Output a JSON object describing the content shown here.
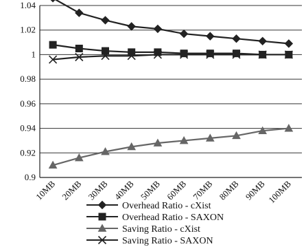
{
  "chart_data": {
    "type": "line",
    "title": "",
    "xlabel": "",
    "ylabel": "",
    "categories": [
      "10MB",
      "20MB",
      "30MB",
      "40MB",
      "50MB",
      "60MB",
      "70MB",
      "80MB",
      "90MB",
      "100MB"
    ],
    "ylim": [
      0.9,
      1.04
    ],
    "yticks": [
      0.9,
      0.92,
      0.94,
      0.96,
      0.98,
      1,
      1.02,
      1.04
    ],
    "ytick_labels": [
      "0.9",
      "0.92",
      "0.94",
      "0.96",
      "0.98",
      "1",
      "1.02",
      "1.04"
    ],
    "grid": true,
    "legend_position": "bottom",
    "series": [
      {
        "name": "Overhead Ratio - cXist",
        "marker": "diamond",
        "values": [
          1.046,
          1.034,
          1.028,
          1.023,
          1.021,
          1.017,
          1.015,
          1.013,
          1.011,
          1.009
        ],
        "color": "#222222"
      },
      {
        "name": "Overhead Ratio - SAXON",
        "marker": "square",
        "values": [
          1.008,
          1.005,
          1.003,
          1.002,
          1.002,
          1.001,
          1.001,
          1.001,
          1.0,
          1.0
        ],
        "color": "#222222"
      },
      {
        "name": "Saving Ratio - cXist",
        "marker": "triangle",
        "values": [
          0.91,
          0.916,
          0.921,
          0.925,
          0.928,
          0.93,
          0.932,
          0.934,
          0.938,
          0.94
        ],
        "color": "#666666"
      },
      {
        "name": "Saving Ratio - SAXON",
        "marker": "x",
        "values": [
          0.996,
          0.998,
          0.999,
          0.999,
          1.0,
          1.0,
          1.0,
          1.0,
          1.0,
          1.0
        ],
        "color": "#222222"
      }
    ]
  }
}
